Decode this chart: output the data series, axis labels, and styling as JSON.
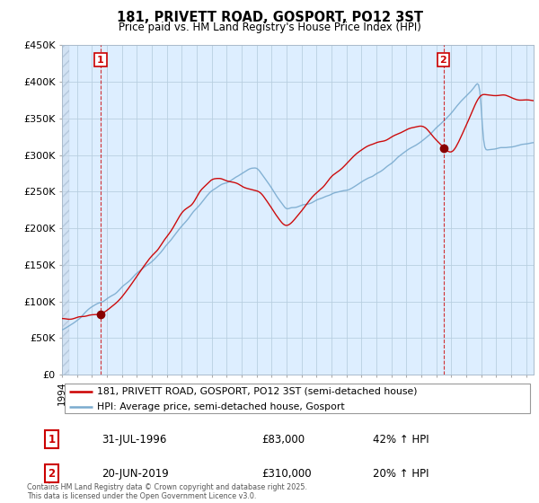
{
  "title": "181, PRIVETT ROAD, GOSPORT, PO12 3ST",
  "subtitle": "Price paid vs. HM Land Registry's House Price Index (HPI)",
  "legend_line1": "181, PRIVETT ROAD, GOSPORT, PO12 3ST (semi-detached house)",
  "legend_line2": "HPI: Average price, semi-detached house, Gosport",
  "annotation1_date": "31-JUL-1996",
  "annotation1_price": "£83,000",
  "annotation1_hpi": "42% ↑ HPI",
  "annotation2_date": "20-JUN-2019",
  "annotation2_price": "£310,000",
  "annotation2_hpi": "20% ↑ HPI",
  "footer": "Contains HM Land Registry data © Crown copyright and database right 2025.\nThis data is licensed under the Open Government Licence v3.0.",
  "red_color": "#cc0000",
  "blue_color": "#7aabcf",
  "grid_color": "#c8d8e8",
  "vline_color": "#cc0000",
  "bg_color": "#ddeeff",
  "ylim": [
    0,
    450000
  ],
  "yticks": [
    0,
    50000,
    100000,
    150000,
    200000,
    250000,
    300000,
    350000,
    400000,
    450000
  ],
  "ytick_labels": [
    "£0",
    "£50K",
    "£100K",
    "£150K",
    "£200K",
    "£250K",
    "£300K",
    "£350K",
    "£400K",
    "£450K"
  ],
  "sale1_year": 1996.58,
  "sale1_price": 83000,
  "sale2_year": 2019.47,
  "sale2_price": 310000
}
